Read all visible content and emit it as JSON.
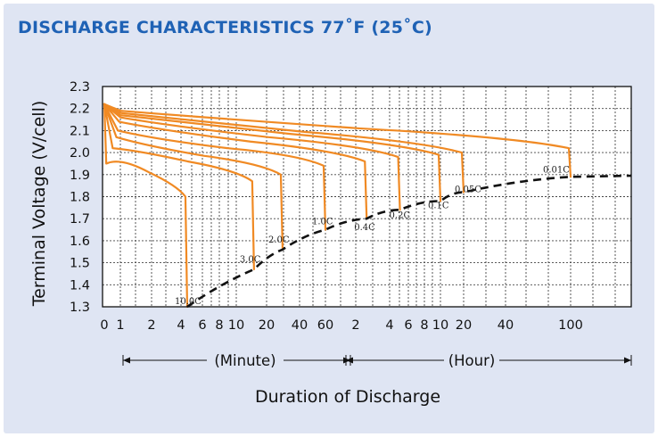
{
  "chart_data": {
    "type": "line",
    "title": "DISCHARGE CHARACTERISTICS 77˚F (25˚C)",
    "ylabel": "Terminal Voltage (V/cell)",
    "xlabel": "Duration of Discharge",
    "ylim": [
      1.3,
      2.3
    ],
    "yticks": [
      "2.3",
      "2.2",
      "2.1",
      "2.0",
      "1.9",
      "1.8",
      "1.7",
      "1.6",
      "1.5",
      "1.4",
      "1.3"
    ],
    "xticks_minute": [
      "0",
      "1",
      "2",
      "4",
      "6",
      "8",
      "10",
      "20",
      "40",
      "60"
    ],
    "xticks_hour": [
      "2",
      "4",
      "6",
      "8",
      "10",
      "20",
      "40",
      "100"
    ],
    "xunit_minute": "(Minute)",
    "xunit_hour": "(Hour)",
    "grid": true,
    "series": [
      {
        "name": "10.0C",
        "end_minutes": 4.5,
        "end_voltage": 1.3
      },
      {
        "name": "3.0C",
        "end_minutes": 15,
        "end_voltage": 1.47
      },
      {
        "name": "2.0C",
        "end_minutes": 28,
        "end_voltage": 1.56
      },
      {
        "name": "1.0C",
        "end_minutes": 60,
        "end_voltage": 1.65
      },
      {
        "name": "0.4C",
        "end_minutes": 150,
        "end_voltage": 1.7
      },
      {
        "name": "0.2C",
        "end_minutes": 300,
        "end_voltage": 1.74
      },
      {
        "name": "0.1C",
        "end_minutes": 600,
        "end_voltage": 1.78
      },
      {
        "name": "0.05C",
        "end_minutes": 1200,
        "end_voltage": 1.82
      },
      {
        "name": "0.01C",
        "end_minutes": 6000,
        "end_voltage": 1.89
      }
    ],
    "cutoff_line_style": "dashed",
    "colors": {
      "curve": "#f08a24",
      "cutoff": "#111111",
      "title": "#1f62b5",
      "grid": "#444444",
      "panel": "#dfe5f3"
    }
  }
}
